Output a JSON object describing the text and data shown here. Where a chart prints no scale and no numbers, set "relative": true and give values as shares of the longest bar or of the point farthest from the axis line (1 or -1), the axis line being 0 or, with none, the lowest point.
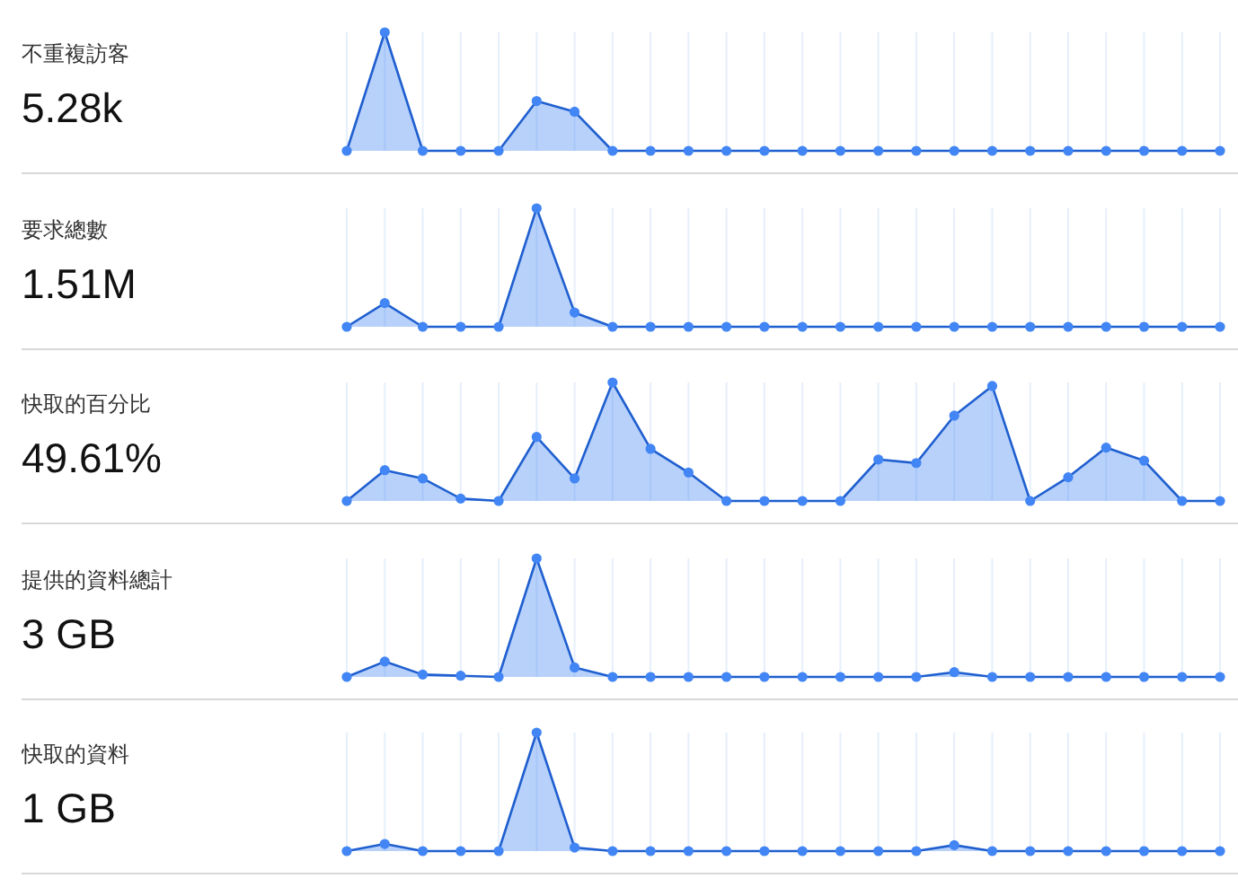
{
  "chart_data": [
    {
      "type": "area",
      "ylabel": "不重複訪客",
      "subtitle": "5.28k",
      "relative": true,
      "categories": [
        null,
        null,
        null,
        null,
        null,
        null,
        null,
        null,
        null,
        null,
        null,
        null,
        null,
        null,
        null,
        null,
        null,
        null,
        null,
        null,
        null,
        null,
        null,
        null
      ],
      "grid": "x",
      "marker": "circle",
      "line_style": "solid",
      "series": [
        {
          "color": "#4285f4",
          "values": [
            0,
            1,
            0,
            0,
            0,
            0.42,
            0.33,
            0,
            0,
            0,
            0,
            0,
            0,
            0,
            0,
            0,
            0,
            0,
            0,
            0,
            0,
            0,
            0,
            0
          ]
        }
      ]
    },
    {
      "type": "area",
      "ylabel": "要求總數",
      "subtitle": "1.51M",
      "relative": true,
      "categories": [
        null,
        null,
        null,
        null,
        null,
        null,
        null,
        null,
        null,
        null,
        null,
        null,
        null,
        null,
        null,
        null,
        null,
        null,
        null,
        null,
        null,
        null,
        null,
        null
      ],
      "grid": "x",
      "marker": "circle",
      "line_style": "solid",
      "series": [
        {
          "color": "#4285f4",
          "values": [
            0,
            0.2,
            0,
            0,
            0,
            1,
            0.12,
            0,
            0,
            0,
            0,
            0,
            0,
            0,
            0,
            0,
            0,
            0,
            0,
            0,
            0,
            0,
            0,
            0
          ]
        }
      ]
    },
    {
      "type": "area",
      "ylabel": "快取的百分比",
      "subtitle": "49.61%",
      "relative": true,
      "categories": [
        null,
        null,
        null,
        null,
        null,
        null,
        null,
        null,
        null,
        null,
        null,
        null,
        null,
        null,
        null,
        null,
        null,
        null,
        null,
        null,
        null,
        null,
        null,
        null
      ],
      "grid": "x",
      "marker": "circle",
      "line_style": "solid",
      "series": [
        {
          "color": "#4285f4",
          "values": [
            0,
            0.26,
            0.19,
            0.02,
            0,
            0.54,
            0.19,
            1,
            0.44,
            0.24,
            0,
            0,
            0,
            0,
            0.35,
            0.32,
            0.72,
            0.97,
            0,
            0.2,
            0.45,
            0.34,
            0,
            0
          ]
        }
      ]
    },
    {
      "type": "area",
      "ylabel": "提供的資料總計",
      "subtitle": "3 GB",
      "relative": true,
      "categories": [
        null,
        null,
        null,
        null,
        null,
        null,
        null,
        null,
        null,
        null,
        null,
        null,
        null,
        null,
        null,
        null,
        null,
        null,
        null,
        null,
        null,
        null,
        null,
        null
      ],
      "grid": "x",
      "marker": "circle",
      "line_style": "solid",
      "series": [
        {
          "color": "#4285f4",
          "values": [
            0,
            0.13,
            0.02,
            0.01,
            0,
            1,
            0.08,
            0,
            0,
            0,
            0,
            0,
            0,
            0,
            0,
            0,
            0.04,
            0,
            0,
            0,
            0,
            0,
            0,
            0
          ]
        }
      ]
    },
    {
      "type": "area",
      "ylabel": "快取的資料",
      "subtitle": "1 GB",
      "relative": true,
      "categories": [
        null,
        null,
        null,
        null,
        null,
        null,
        null,
        null,
        null,
        null,
        null,
        null,
        null,
        null,
        null,
        null,
        null,
        null,
        null,
        null,
        null,
        null,
        null,
        null
      ],
      "grid": "x",
      "marker": "circle",
      "line_style": "solid",
      "series": [
        {
          "color": "#4285f4",
          "values": [
            0,
            0.06,
            0,
            0,
            0,
            1,
            0.03,
            0,
            0,
            0,
            0,
            0,
            0,
            0,
            0,
            0,
            0.05,
            0,
            0,
            0,
            0,
            0,
            0,
            0
          ]
        }
      ]
    }
  ]
}
